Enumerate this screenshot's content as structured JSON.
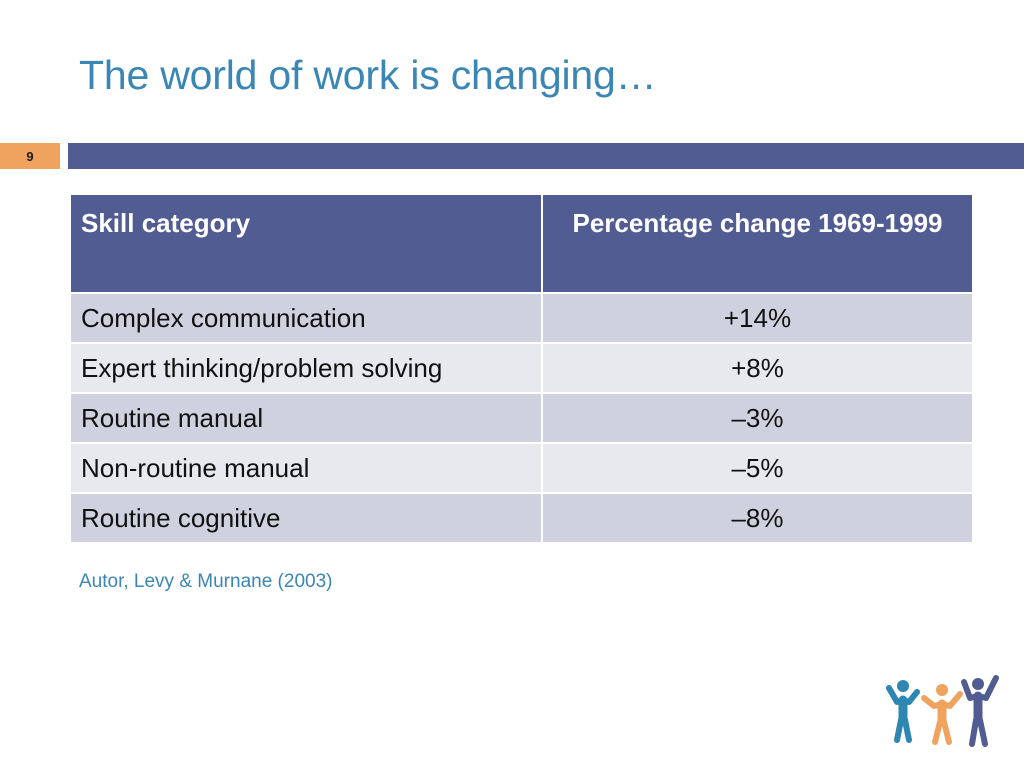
{
  "slide": {
    "title": "The world of work is changing…",
    "page_number": "9",
    "source": "Autor, Levy & Murnane (2003)"
  },
  "table": {
    "headers": [
      "Skill category",
      "Percentage change 1969-1999"
    ],
    "rows": [
      {
        "skill": "Complex communication",
        "change": "+14%"
      },
      {
        "skill": "Expert thinking/problem solving",
        "change": "+8%"
      },
      {
        "skill": "Routine manual",
        "change": "–3%"
      },
      {
        "skill": "Non-routine manual",
        "change": "–5%"
      },
      {
        "skill": "Routine cognitive",
        "change": "–8%"
      }
    ]
  },
  "colors": {
    "title": "#3a86b5",
    "header_bar": "#515c93",
    "badge": "#f0a35e",
    "row_odd": "#d0d1df",
    "row_even": "#e8e9ef",
    "logo_blue": "#2e86b3",
    "logo_orange": "#f0a35e",
    "logo_navy": "#515c93"
  },
  "logo": {
    "icon": "people-group-icon"
  }
}
